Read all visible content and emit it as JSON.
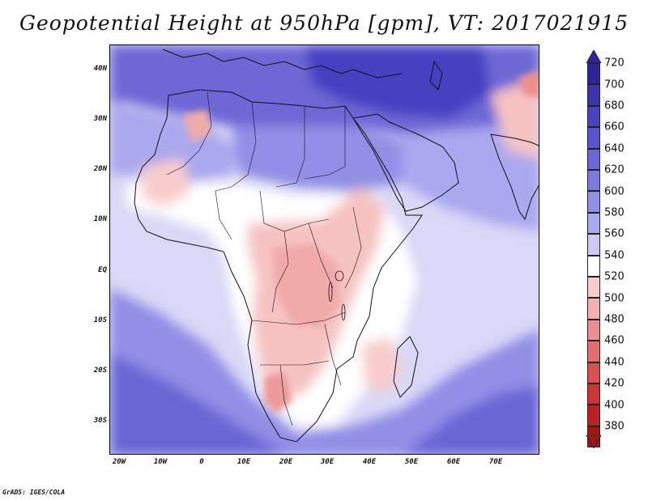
{
  "title": "Geopotential Height at 950hPa [gpm], VT: 2017021915",
  "footer": "GrADS: IGES/COLA",
  "map": {
    "variable": "Geopotential Height",
    "level": "950hPa",
    "units": "gpm",
    "valid_time": "2017021915",
    "lat_labels": [
      "40N",
      "30N",
      "20N",
      "10N",
      "EQ",
      "10S",
      "20S",
      "30S"
    ],
    "lon_labels": [
      "20W",
      "10W",
      "0",
      "10E",
      "20E",
      "30E",
      "40E",
      "50E",
      "60E",
      "70E"
    ]
  },
  "colorbar": {
    "labels": [
      "720",
      "700",
      "680",
      "660",
      "640",
      "620",
      "600",
      "580",
      "560",
      "540",
      "520",
      "500",
      "480",
      "460",
      "440",
      "420",
      "400",
      "380"
    ],
    "colors": [
      "#2d2596",
      "#3b34ad",
      "#4a43c0",
      "#5a54cc",
      "#6a66d6",
      "#7d7ade",
      "#928fe6",
      "#aaa8ee",
      "#cccaf5",
      "#ffffff",
      "#f9cccc",
      "#f3b0b0",
      "#e99090",
      "#e07070",
      "#d85050",
      "#cd3535",
      "#bc2222",
      "#a51515"
    ]
  }
}
